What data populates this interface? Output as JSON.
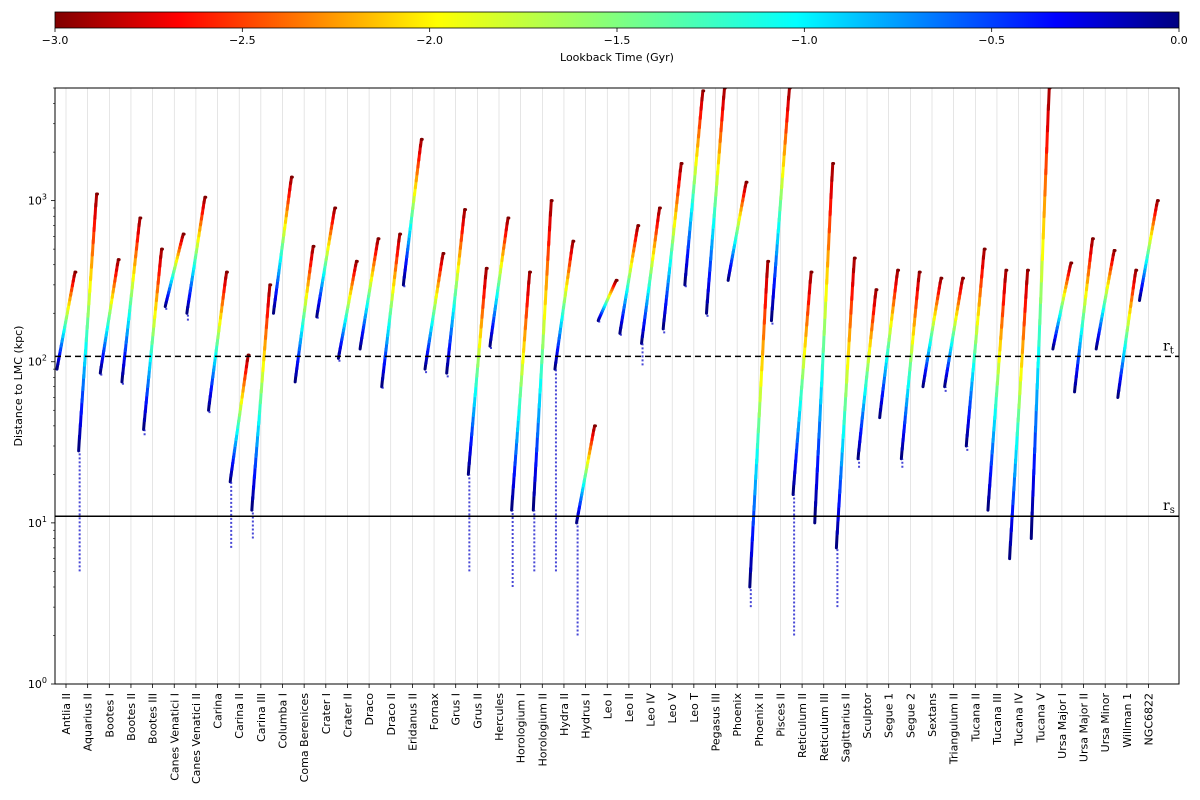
{
  "chart_data": {
    "type": "scatter",
    "colorbar": {
      "label": "Lookback Time (Gyr)",
      "range": [
        -3.0,
        0.0
      ],
      "ticks": [
        "−3.0",
        "−2.5",
        "−2.0",
        "−1.5",
        "−1.0",
        "−0.5",
        "0.0"
      ],
      "tick_values": [
        -3.0,
        -2.5,
        -2.0,
        -1.5,
        -1.0,
        -0.5,
        0.0
      ],
      "colormap": "jet_reversed"
    },
    "ylabel": "Distance to LMC (kpc)",
    "yscale": "log",
    "ylim": [
      1,
      5000
    ],
    "yticks": [
      {
        "value": 1,
        "base": "10",
        "exp": "0"
      },
      {
        "value": 10,
        "base": "10",
        "exp": "1"
      },
      {
        "value": 100,
        "base": "10",
        "exp": "2"
      },
      {
        "value": 1000,
        "base": "10",
        "exp": "3"
      }
    ],
    "reference_lines": [
      {
        "base": "r",
        "sub": "t",
        "value": 108,
        "style": "dashed"
      },
      {
        "base": "r",
        "sub": "s",
        "value": 11,
        "style": "solid"
      }
    ],
    "categories": [
      "Antlia II",
      "Aquarius II",
      "Bootes I",
      "Bootes II",
      "Bootes III",
      "Canes Venatici I",
      "Canes Venatici II",
      "Carina",
      "Carina II",
      "Carina III",
      "Columba I",
      "Coma Berenices",
      "Crater I",
      "Crater II",
      "Draco",
      "Draco II",
      "Eridanus II",
      "Fornax",
      "Grus I",
      "Grus II",
      "Hercules",
      "Horologium I",
      "Horologium II",
      "Hydra II",
      "Hydrus I",
      "Leo I",
      "Leo II",
      "Leo IV",
      "Leo V",
      "Leo T",
      "Pegasus III",
      "Phoenix",
      "Phoenix II",
      "Pisces II",
      "Reticulum II",
      "Reticulum III",
      "Sagittarius II",
      "Sculptor",
      "Segue 1",
      "Segue 2",
      "Sextans",
      "Triangulum II",
      "Tucana II",
      "Tucana III",
      "Tucana IV",
      "Tucana V",
      "Ursa Major I",
      "Ursa Major II",
      "Ursa Minor",
      "Willman 1",
      "NGC6822"
    ],
    "series": [
      {
        "present": 90,
        "past": 360,
        "min": 90
      },
      {
        "present": 28,
        "past": 1100,
        "min": 5
      },
      {
        "present": 85,
        "past": 430,
        "min": 82
      },
      {
        "present": 75,
        "past": 780,
        "min": 72
      },
      {
        "present": 38,
        "past": 500,
        "min": 35
      },
      {
        "present": 220,
        "past": 620,
        "min": 210
      },
      {
        "present": 200,
        "past": 1050,
        "min": 180
      },
      {
        "present": 50,
        "past": 360,
        "min": 48
      },
      {
        "present": 18,
        "past": 110,
        "min": 7
      },
      {
        "present": 12,
        "past": 300,
        "min": 8
      },
      {
        "present": 200,
        "past": 1400,
        "min": 200
      },
      {
        "present": 75,
        "past": 520,
        "min": 75
      },
      {
        "present": 190,
        "past": 900,
        "min": 185
      },
      {
        "present": 105,
        "past": 420,
        "min": 100
      },
      {
        "present": 120,
        "past": 580,
        "min": 120
      },
      {
        "present": 70,
        "past": 620,
        "min": 68
      },
      {
        "present": 300,
        "past": 2400,
        "min": 290
      },
      {
        "present": 90,
        "past": 470,
        "min": 85
      },
      {
        "present": 85,
        "past": 880,
        "min": 80
      },
      {
        "present": 20,
        "past": 380,
        "min": 5
      },
      {
        "present": 125,
        "past": 780,
        "min": 120
      },
      {
        "present": 12,
        "past": 360,
        "min": 4
      },
      {
        "present": 12,
        "past": 1000,
        "min": 5
      },
      {
        "present": 90,
        "past": 560,
        "min": 5
      },
      {
        "present": 10,
        "past": 40,
        "min": 2
      },
      {
        "present": 180,
        "past": 320,
        "min": 175
      },
      {
        "present": 150,
        "past": 700,
        "min": 145
      },
      {
        "present": 130,
        "past": 900,
        "min": 95
      },
      {
        "present": 160,
        "past": 1700,
        "min": 150
      },
      {
        "present": 300,
        "past": 4800,
        "min": 290
      },
      {
        "present": 200,
        "past": 5000,
        "min": 190
      },
      {
        "present": 320,
        "past": 1300,
        "min": 320
      },
      {
        "present": 4,
        "past": 420,
        "min": 3
      },
      {
        "present": 180,
        "past": 5000,
        "min": 170
      },
      {
        "present": 15,
        "past": 360,
        "min": 2
      },
      {
        "present": 10,
        "past": 1700,
        "min": 10
      },
      {
        "present": 7,
        "past": 440,
        "min": 3
      },
      {
        "present": 25,
        "past": 280,
        "min": 22
      },
      {
        "present": 45,
        "past": 370,
        "min": 45
      },
      {
        "present": 25,
        "past": 360,
        "min": 22
      },
      {
        "present": 70,
        "past": 330,
        "min": 70
      },
      {
        "present": 70,
        "past": 330,
        "min": 65
      },
      {
        "present": 30,
        "past": 500,
        "min": 28
      },
      {
        "present": 12,
        "past": 370,
        "min": 12
      },
      {
        "present": 6,
        "past": 370,
        "min": 6
      },
      {
        "present": 8,
        "past": 5000,
        "min": 8
      },
      {
        "present": 120,
        "past": 410,
        "min": 120
      },
      {
        "present": 65,
        "past": 580,
        "min": 65
      },
      {
        "present": 120,
        "past": 490,
        "min": 120
      },
      {
        "present": 60,
        "past": 370,
        "min": 60
      },
      {
        "present": 240,
        "past": 1000,
        "min": 240
      }
    ]
  }
}
